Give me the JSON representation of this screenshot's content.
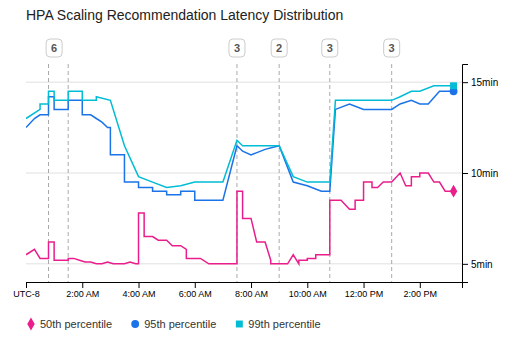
{
  "chart_data": {
    "type": "line",
    "title": "HPA Scaling Recommendation Latency Distribution",
    "xlim": [
      0,
      15.5
    ],
    "xticks": [
      {
        "value": 0,
        "label": "UTC-8"
      },
      {
        "value": 2,
        "label": "2:00 AM"
      },
      {
        "value": 4,
        "label": "4:00 AM"
      },
      {
        "value": 6,
        "label": "6:00 AM"
      },
      {
        "value": 8,
        "label": "8:00 AM"
      },
      {
        "value": 10,
        "label": "10:00 AM"
      },
      {
        "value": 12,
        "label": "12:00 PM"
      },
      {
        "value": 14,
        "label": "2:00 PM"
      }
    ],
    "ylim": [
      4,
      16
    ],
    "yticks": [
      {
        "value": 5,
        "label": "5min"
      },
      {
        "value": 10,
        "label": "10min"
      },
      {
        "value": 15,
        "label": "15min"
      }
    ],
    "grid": true,
    "legend": "bottom",
    "vlines": [
      0.8,
      1.5,
      7.5,
      9.0,
      10.8,
      13.0
    ],
    "annotations": [
      {
        "x": 1.0,
        "text": "6"
      },
      {
        "x": 7.5,
        "text": "3"
      },
      {
        "x": 9.0,
        "text": "2"
      },
      {
        "x": 10.8,
        "text": "3"
      },
      {
        "x": 13.0,
        "text": "3"
      }
    ],
    "series": [
      {
        "name": "50th percentile",
        "color": "#e91e8c",
        "marker": "diamond",
        "x": [
          0,
          0.3,
          0.5,
          0.8,
          0.8,
          1.0,
          1.0,
          1.5,
          1.5,
          1.7,
          1.9,
          2.1,
          2.3,
          2.5,
          2.7,
          2.9,
          3.1,
          3.3,
          3.5,
          3.7,
          3.9,
          4.0,
          4.0,
          4.2,
          4.2,
          4.5,
          4.7,
          5.0,
          5.2,
          5.5,
          5.7,
          5.7,
          6.0,
          6.0,
          6.2,
          6.5,
          6.5,
          7.0,
          7.0,
          7.5,
          7.5,
          7.7,
          7.7,
          8.0,
          8.2,
          8.5,
          8.7,
          8.7,
          9.0,
          9.0,
          9.3,
          9.5,
          9.5,
          9.7,
          9.7,
          10.0,
          10.0,
          10.3,
          10.3,
          10.5,
          10.5,
          10.8,
          10.8,
          11.0,
          11.2,
          11.5,
          11.7,
          11.7,
          12.0,
          12.0,
          12.3,
          12.3,
          12.5,
          12.7,
          12.7,
          13.0,
          13.0,
          13.3,
          13.3,
          13.5,
          13.7,
          13.7,
          14.0,
          14.0,
          14.3,
          14.5,
          14.7,
          14.9,
          15.2
        ],
        "values": [
          5.5,
          5.8,
          5.3,
          5.3,
          6.2,
          6.2,
          5.2,
          5.2,
          5.3,
          5.3,
          5.2,
          5.1,
          5.1,
          5.0,
          5.0,
          5.1,
          5.0,
          5.0,
          5.0,
          5.1,
          5.0,
          5.0,
          7.8,
          7.8,
          6.5,
          6.5,
          6.3,
          6.3,
          6.0,
          6.0,
          5.8,
          5.3,
          5.3,
          5.3,
          5.3,
          5.0,
          5.0,
          5.0,
          5.0,
          5.0,
          9.0,
          9.0,
          7.5,
          7.5,
          6.2,
          6.2,
          5.2,
          5.0,
          5.0,
          5.0,
          5.0,
          5.5,
          5.5,
          5.0,
          5.2,
          5.2,
          5.3,
          5.3,
          5.5,
          5.5,
          5.5,
          5.5,
          8.5,
          8.5,
          8.5,
          8.0,
          8.0,
          8.5,
          8.5,
          9.5,
          9.5,
          9.2,
          9.2,
          9.5,
          9.5,
          9.5,
          9.5,
          10.0,
          10.0,
          9.3,
          9.3,
          9.8,
          9.8,
          10.0,
          10.0,
          9.5,
          9.5,
          9.0,
          9.0
        ]
      },
      {
        "name": "95th percentile",
        "color": "#1a73e8",
        "marker": "circle",
        "x": [
          0,
          0.3,
          0.5,
          0.8,
          0.8,
          1.0,
          1.0,
          1.5,
          1.5,
          2.0,
          2.0,
          2.3,
          2.5,
          2.7,
          2.9,
          3.0,
          3.0,
          3.5,
          3.5,
          4.0,
          4.0,
          4.5,
          4.5,
          5.0,
          5.0,
          5.5,
          5.5,
          6.0,
          6.0,
          6.5,
          6.5,
          7.0,
          7.0,
          7.5,
          7.5,
          7.7,
          7.7,
          8.0,
          8.0,
          8.5,
          8.5,
          9.0,
          9.0,
          9.5,
          9.5,
          10.0,
          10.0,
          10.5,
          10.5,
          10.8,
          10.8,
          11.0,
          11.0,
          11.5,
          11.5,
          12.0,
          12.0,
          12.5,
          12.5,
          13.0,
          13.0,
          13.3,
          13.3,
          13.7,
          13.7,
          14.0,
          14.0,
          14.3,
          14.3,
          14.7,
          14.7,
          15.2
        ],
        "values": [
          12.5,
          13.0,
          13.2,
          13.2,
          14.2,
          14.2,
          13.5,
          13.5,
          14.0,
          14.0,
          13.2,
          13.2,
          13.0,
          12.8,
          12.5,
          12.5,
          11.0,
          11.0,
          9.5,
          9.5,
          9.2,
          9.2,
          9.0,
          9.0,
          8.8,
          8.8,
          9.0,
          9.0,
          8.5,
          8.5,
          8.5,
          8.5,
          8.5,
          11.5,
          11.5,
          11.2,
          11.2,
          11.0,
          11.0,
          11.3,
          11.3,
          11.5,
          11.5,
          9.5,
          9.5,
          9.3,
          9.3,
          9.0,
          9.0,
          9.0,
          9.0,
          13.5,
          13.5,
          13.8,
          13.8,
          13.5,
          13.5,
          13.5,
          13.5,
          13.5,
          13.5,
          13.8,
          13.8,
          14.0,
          14.0,
          13.8,
          13.8,
          13.8,
          13.8,
          14.5,
          14.5,
          14.5
        ]
      },
      {
        "name": "99th percentile",
        "color": "#00bcd4",
        "marker": "square",
        "x": [
          0,
          0.5,
          0.5,
          0.8,
          0.8,
          1.0,
          1.0,
          1.5,
          1.5,
          2.0,
          2.0,
          2.5,
          2.5,
          3.0,
          3.0,
          3.5,
          3.5,
          4.0,
          4.0,
          4.5,
          4.5,
          5.0,
          5.0,
          5.5,
          5.5,
          6.0,
          6.0,
          6.5,
          6.5,
          7.0,
          7.0,
          7.5,
          7.5,
          7.7,
          7.7,
          8.0,
          8.0,
          8.5,
          8.5,
          9.0,
          9.0,
          9.5,
          9.5,
          10.0,
          10.0,
          10.5,
          10.5,
          10.8,
          10.8,
          11.0,
          11.0,
          11.5,
          11.5,
          12.0,
          12.0,
          12.5,
          12.5,
          13.0,
          13.0,
          13.3,
          13.3,
          13.7,
          13.7,
          14.0,
          14.0,
          14.5,
          14.5,
          15.2
        ],
        "values": [
          13.0,
          13.5,
          13.8,
          13.8,
          14.5,
          14.5,
          14.0,
          14.0,
          14.5,
          14.5,
          14.0,
          14.0,
          14.2,
          14.0,
          14.0,
          11.5,
          11.5,
          9.8,
          9.8,
          9.5,
          9.5,
          9.2,
          9.2,
          9.3,
          9.3,
          9.5,
          9.5,
          9.5,
          9.5,
          9.5,
          9.5,
          11.8,
          11.8,
          11.5,
          11.5,
          11.5,
          11.5,
          11.5,
          11.5,
          11.5,
          11.5,
          9.8,
          9.8,
          9.5,
          9.5,
          9.5,
          9.5,
          9.5,
          9.5,
          14.0,
          14.0,
          14.0,
          14.0,
          14.0,
          14.0,
          14.0,
          14.0,
          14.0,
          14.0,
          14.2,
          14.2,
          14.5,
          14.5,
          14.5,
          14.5,
          14.8,
          14.8,
          14.8
        ]
      }
    ]
  }
}
